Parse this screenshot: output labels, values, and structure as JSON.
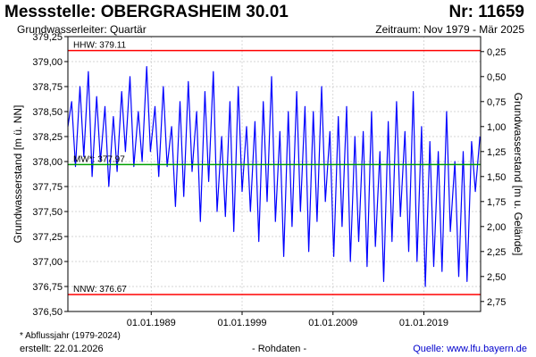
{
  "header": {
    "title": "Messstelle: OBERGRASHEIM 30.01",
    "number": "Nr: 11659",
    "aquifer": "Grundwasserleiter: Quartär",
    "period": "Zeitraum: Nov 1979 - Mär 2025"
  },
  "footer": {
    "note": "* Abflussjahr (1979-2024)",
    "created": "erstellt:  22.01.2026",
    "raw": "- Rohdaten -",
    "source": "Quelle: www.lfu.bayern.de"
  },
  "colors": {
    "series": "#0000ff",
    "hhw": "#ff0000",
    "nnw": "#ff0000",
    "mw": "#00a000",
    "grid": "#c8c8c8"
  },
  "chart_data": {
    "type": "line",
    "ylabel": "Grundwasserstand [m ü. NN]",
    "y2label": "Grundwasserstand [m u. Gelände]",
    "ylim": [
      376.5,
      379.25
    ],
    "y2lim": [
      2.85,
      0.1
    ],
    "xlim": [
      "1979-11-01",
      "2025-03-31"
    ],
    "yticks": [
      "376,50",
      "376,75",
      "377,00",
      "377,25",
      "377,50",
      "377,75",
      "378,00",
      "378,25",
      "378,50",
      "378,75",
      "379,00",
      "379,25"
    ],
    "y2ticks": [
      "0,25",
      "0,50",
      "0,75",
      "1,00",
      "1,25",
      "1,50",
      "1,75",
      "2,00",
      "2,25",
      "2,50",
      "2,75"
    ],
    "xticks": [
      {
        "date": "1989-01-01",
        "label": "01.01.1989"
      },
      {
        "date": "1999-01-01",
        "label": "01.01.1999"
      },
      {
        "date": "2009-01-01",
        "label": "01.01.2009"
      },
      {
        "date": "2019-01-01",
        "label": "01.01.2019"
      }
    ],
    "reference_lines": [
      {
        "label": "HHW: 379.11",
        "value": 379.11,
        "color": "#ff0000"
      },
      {
        "label": "MW*: 377.97",
        "value": 377.97,
        "color": "#00a000"
      },
      {
        "label": "NNW: 376.67",
        "value": 376.67,
        "color": "#ff0000"
      }
    ],
    "series": [
      {
        "x": [
          "1979-11-01",
          "1980-04-01",
          "1980-09-01",
          "1981-03-01",
          "1981-08-01",
          "1982-02-01",
          "1982-07-01",
          "1983-01-01",
          "1983-06-01",
          "1983-12-01",
          "1984-05-01",
          "1984-11-01",
          "1985-04-01",
          "1985-10-01",
          "1986-03-01",
          "1986-09-01",
          "1987-02-01",
          "1987-08-01",
          "1988-01-01",
          "1988-07-01",
          "1988-12-01",
          "1989-06-01",
          "1989-11-01",
          "1990-05-01",
          "1990-10-01",
          "1991-04-01",
          "1991-09-01",
          "1992-03-01",
          "1992-08-01",
          "1993-02-01",
          "1993-07-01",
          "1994-01-01",
          "1994-06-01",
          "1994-12-01",
          "1995-05-01",
          "1995-11-01",
          "1996-04-01",
          "1996-10-01",
          "1997-03-01",
          "1997-09-01",
          "1998-02-01",
          "1998-08-01",
          "1999-01-01",
          "1999-07-01",
          "1999-12-01",
          "2000-06-01",
          "2000-11-01",
          "2001-05-01",
          "2001-10-01",
          "2002-04-01",
          "2002-09-01",
          "2003-03-01",
          "2003-08-01",
          "2004-02-01",
          "2004-07-01",
          "2005-01-01",
          "2005-06-01",
          "2005-12-01",
          "2006-05-01",
          "2006-11-01",
          "2007-04-01",
          "2007-10-01",
          "2008-03-01",
          "2008-09-01",
          "2009-02-01",
          "2009-08-01",
          "2010-01-01",
          "2010-07-01",
          "2010-12-01",
          "2011-06-01",
          "2011-11-01",
          "2012-05-01",
          "2012-10-01",
          "2013-04-01",
          "2013-09-01",
          "2014-03-01",
          "2014-08-01",
          "2015-02-01",
          "2015-07-01",
          "2016-01-01",
          "2016-06-01",
          "2016-12-01",
          "2017-05-01",
          "2017-11-01",
          "2018-04-01",
          "2018-10-01",
          "2019-03-01",
          "2019-09-01",
          "2020-02-01",
          "2020-08-01",
          "2021-01-01",
          "2021-07-01",
          "2021-12-01",
          "2022-06-01",
          "2022-11-01",
          "2023-05-01",
          "2023-10-01",
          "2024-04-01",
          "2024-09-01",
          "2025-03-01"
        ],
        "values": [
          378.35,
          378.6,
          377.95,
          378.75,
          378.05,
          378.9,
          377.85,
          378.65,
          378.0,
          378.55,
          377.75,
          378.45,
          377.9,
          378.7,
          378.1,
          378.85,
          377.95,
          378.5,
          378.0,
          378.95,
          378.1,
          378.55,
          377.85,
          378.75,
          377.95,
          378.35,
          377.55,
          378.6,
          377.65,
          378.8,
          377.9,
          378.5,
          377.4,
          378.7,
          377.8,
          378.9,
          377.5,
          378.25,
          377.45,
          378.6,
          377.3,
          378.75,
          377.7,
          378.35,
          377.5,
          378.4,
          377.2,
          378.6,
          377.6,
          378.85,
          377.4,
          378.3,
          377.05,
          378.5,
          377.35,
          378.7,
          377.5,
          378.55,
          377.1,
          378.5,
          377.4,
          378.75,
          377.6,
          378.3,
          377.05,
          378.45,
          377.35,
          378.55,
          377.0,
          378.25,
          377.2,
          378.3,
          376.95,
          378.5,
          377.15,
          378.1,
          376.8,
          378.4,
          377.2,
          378.6,
          377.45,
          378.3,
          377.1,
          378.7,
          377.0,
          378.35,
          376.75,
          378.2,
          376.95,
          378.1,
          376.9,
          378.5,
          377.3,
          378.0,
          376.85,
          378.1,
          376.8,
          378.2,
          377.7,
          378.25
        ]
      }
    ]
  }
}
